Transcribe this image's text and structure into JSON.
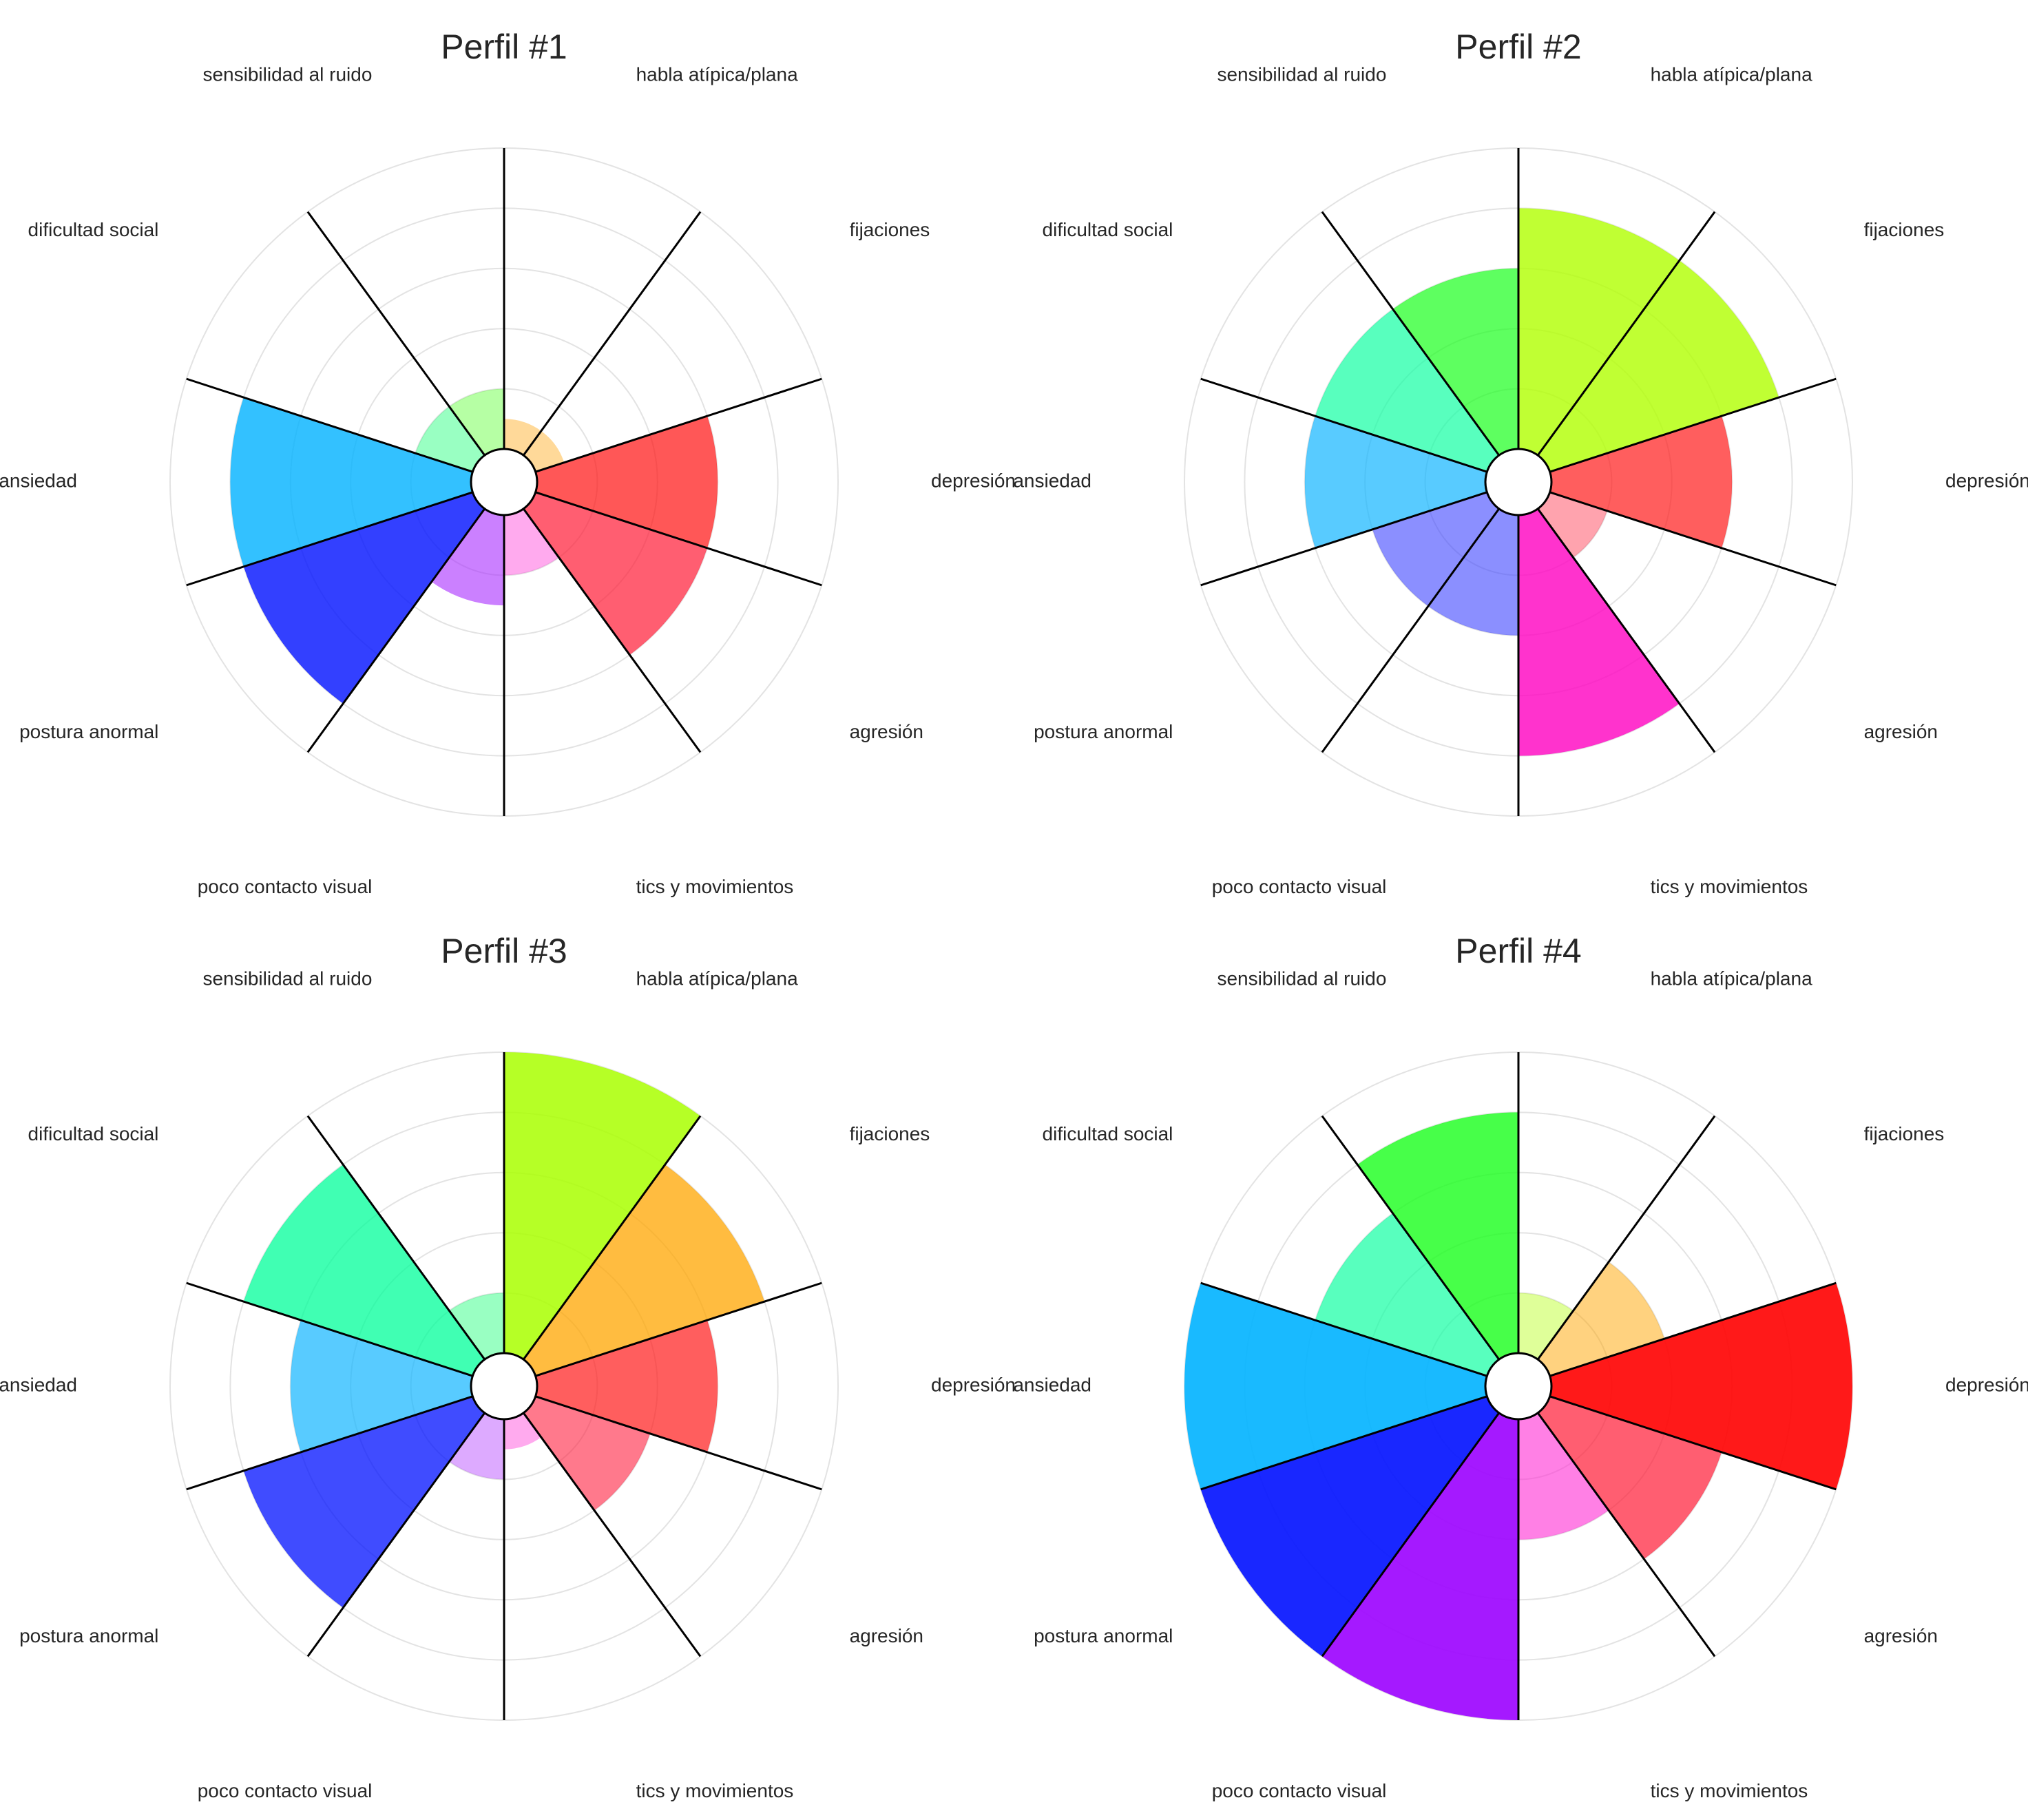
{
  "chart_data": [
    {
      "type": "polar-bar",
      "title": "Perfil #1",
      "categories": [
        "habla atípica/plana",
        "fijaciones",
        "depresión",
        "agresión",
        "tics y movimientos",
        "poco contacto visual",
        "postura anormal",
        "ansiedad",
        "dificultad social",
        "sensibilidad al ruido"
      ],
      "values": [
        0.5,
        0.5,
        3.0,
        3.0,
        1.0,
        1.5,
        4.0,
        4.0,
        1.0,
        1.0
      ],
      "colors": [
        "#ff9f00",
        "#ff9f00",
        "#ff1010",
        "#ff1a35",
        "#ff2bd4",
        "#a92bff",
        "#0010ff",
        "#00b2ff",
        "#00ff66",
        "#49ff1c"
      ],
      "opacities": [
        0.4,
        0.4,
        0.7,
        0.7,
        0.4,
        0.6,
        0.8,
        0.8,
        0.4,
        0.4
      ],
      "rlim": [
        0,
        5
      ]
    },
    {
      "type": "polar-bar",
      "title": "Perfil #2",
      "categories": [
        "habla atípica/plana",
        "fijaciones",
        "depresión",
        "agresión",
        "tics y movimientos",
        "poco contacto visual",
        "postura anormal",
        "ansiedad",
        "dificultad social",
        "sensibilidad al ruido"
      ],
      "values": [
        4.0,
        4.0,
        3.0,
        1.0,
        4.0,
        2.0,
        2.0,
        3.0,
        3.0,
        3.0
      ],
      "colors": [
        "#b0ff00",
        "#b0ff00",
        "#ff1a1a",
        "#ff1a35",
        "#ff00c0",
        "#3e44ff",
        "#3e44ff",
        "#11b5ff",
        "#11ffa2",
        "#19ff1c"
      ],
      "opacities": [
        0.8,
        0.8,
        0.7,
        0.4,
        0.8,
        0.6,
        0.6,
        0.7,
        0.7,
        0.7
      ],
      "rlim": [
        0,
        5
      ]
    },
    {
      "type": "polar-bar",
      "title": "Perfil #3",
      "categories": [
        "habla atípica/plana",
        "fijaciones",
        "depresión",
        "agresión",
        "tics y movimientos",
        "poco contacto visual",
        "postura anormal",
        "ansiedad",
        "dificultad social",
        "sensibilidad al ruido"
      ],
      "values": [
        5.0,
        4.0,
        3.0,
        2.0,
        0.5,
        1.0,
        4.0,
        3.0,
        4.0,
        1.0
      ],
      "colors": [
        "#a9ff00",
        "#ffa600",
        "#ff1a1a",
        "#ff2040",
        "#ff2bd4",
        "#a92bff",
        "#0010ff",
        "#11b5ff",
        "#00ff9a",
        "#00ff66"
      ],
      "opacities": [
        0.85,
        0.75,
        0.7,
        0.6,
        0.4,
        0.4,
        0.75,
        0.7,
        0.75,
        0.4
      ],
      "rlim": [
        0,
        5
      ]
    },
    {
      "type": "polar-bar",
      "title": "Perfil #4",
      "categories": [
        "habla atípica/plana",
        "fijaciones",
        "depresión",
        "agresión",
        "tics y movimientos",
        "poco contacto visual",
        "postura anormal",
        "ansiedad",
        "dificultad social",
        "sensibilidad al ruido"
      ],
      "values": [
        1.0,
        2.0,
        5.0,
        3.0,
        2.0,
        5.0,
        5.0,
        5.0,
        3.0,
        4.0
      ],
      "colors": [
        "#b0ff00",
        "#ffa600",
        "#ff0000",
        "#ff1a35",
        "#ff2bd4",
        "#9b00ff",
        "#0010ff",
        "#00b2ff",
        "#11ffa2",
        "#19ff1c"
      ],
      "opacities": [
        0.4,
        0.5,
        0.9,
        0.7,
        0.6,
        0.9,
        0.9,
        0.9,
        0.7,
        0.8
      ],
      "rlim": [
        0,
        5
      ]
    }
  ]
}
